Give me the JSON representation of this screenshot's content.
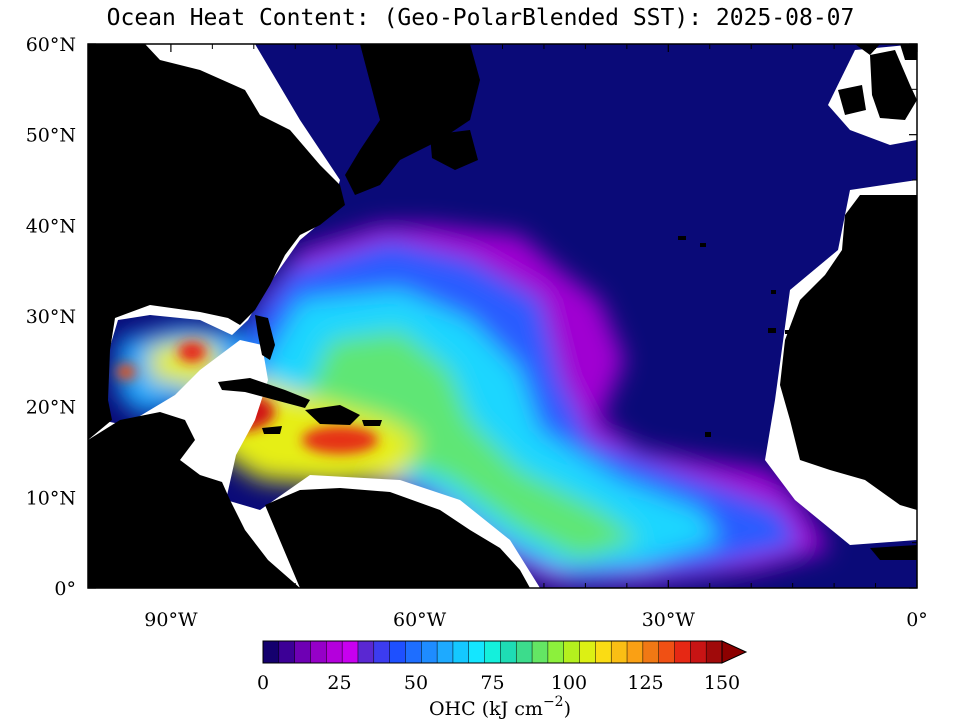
{
  "title": "Ocean Heat Content: (Geo-PolarBlended SST): 2025-08-07",
  "axes": {
    "lat_labels": [
      "60°N",
      "50°N",
      "40°N",
      "30°N",
      "20°N",
      "10°N",
      "0°"
    ],
    "lon_labels": [
      "90°W",
      "60°W",
      "30°W",
      "0°"
    ],
    "lon_range": [
      -100,
      0
    ],
    "lat_range": [
      0,
      60
    ]
  },
  "colorbar": {
    "ticks": [
      "0",
      "25",
      "50",
      "75",
      "100",
      "125",
      "150"
    ],
    "label": "OHC (kJ cm",
    "label_sup": "−2",
    "label_close": ")",
    "colors": [
      "#14006e",
      "#3c0096",
      "#6e00b4",
      "#9600c8",
      "#b400dc",
      "#c800f0",
      "#5a28d2",
      "#3c3cf0",
      "#1e50ff",
      "#1e6eff",
      "#1e8cff",
      "#1eaaff",
      "#14c8ff",
      "#14e6ff",
      "#14f0dc",
      "#1edcb4",
      "#3cdc8c",
      "#64e664",
      "#8cf03c",
      "#b4f01e",
      "#dcf014",
      "#fadc14",
      "#fabe14",
      "#faa014",
      "#f07814",
      "#f05014",
      "#e62814",
      "#c81414",
      "#a00a0a"
    ],
    "extend_color": "#8c0000"
  },
  "colors": {
    "land": "#000000",
    "ocean_zero": "#0a0a78",
    "coast_mask": "#ffffff"
  }
}
